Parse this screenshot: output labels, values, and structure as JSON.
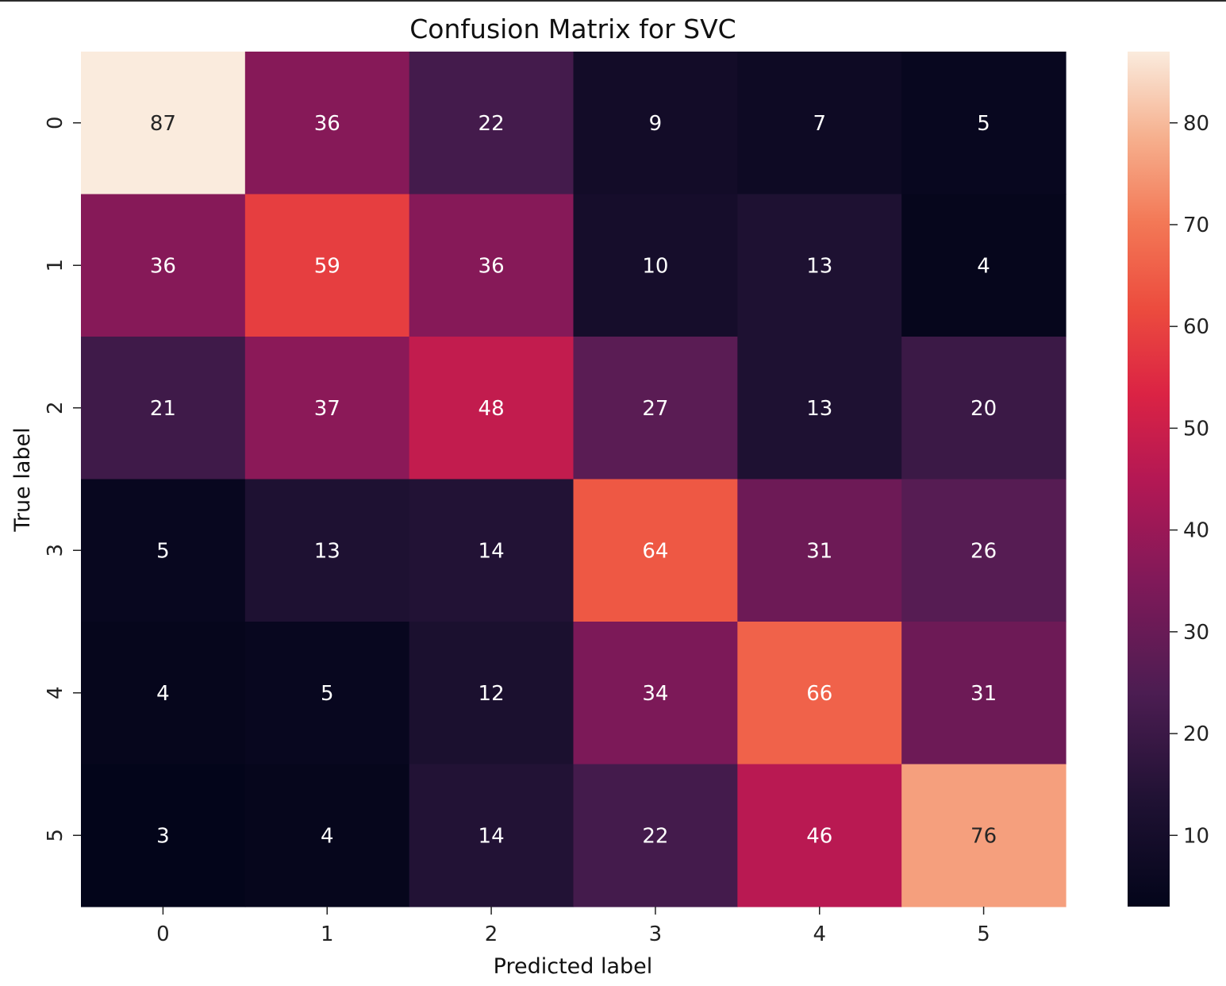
{
  "chart_data": {
    "type": "heatmap",
    "title": "Confusion Matrix for SVC",
    "xlabel": "Predicted label",
    "ylabel": "True label",
    "x_categories": [
      "0",
      "1",
      "2",
      "3",
      "4",
      "5"
    ],
    "y_categories": [
      "0",
      "1",
      "2",
      "3",
      "4",
      "5"
    ],
    "matrix": [
      [
        87,
        36,
        22,
        9,
        7,
        5
      ],
      [
        36,
        59,
        36,
        10,
        13,
        4
      ],
      [
        21,
        37,
        48,
        27,
        13,
        20
      ],
      [
        5,
        13,
        14,
        64,
        31,
        26
      ],
      [
        4,
        5,
        12,
        34,
        66,
        31
      ],
      [
        3,
        4,
        14,
        22,
        46,
        76
      ]
    ],
    "colormap": "rocket",
    "colorbar": {
      "range": [
        3,
        87
      ],
      "ticks": [
        10,
        20,
        30,
        40,
        50,
        60,
        70,
        80
      ],
      "tick_labels": [
        "10",
        "20",
        "30",
        "40",
        "50",
        "60",
        "70",
        "80"
      ],
      "position": "right"
    },
    "annotate": true,
    "grid": false
  }
}
